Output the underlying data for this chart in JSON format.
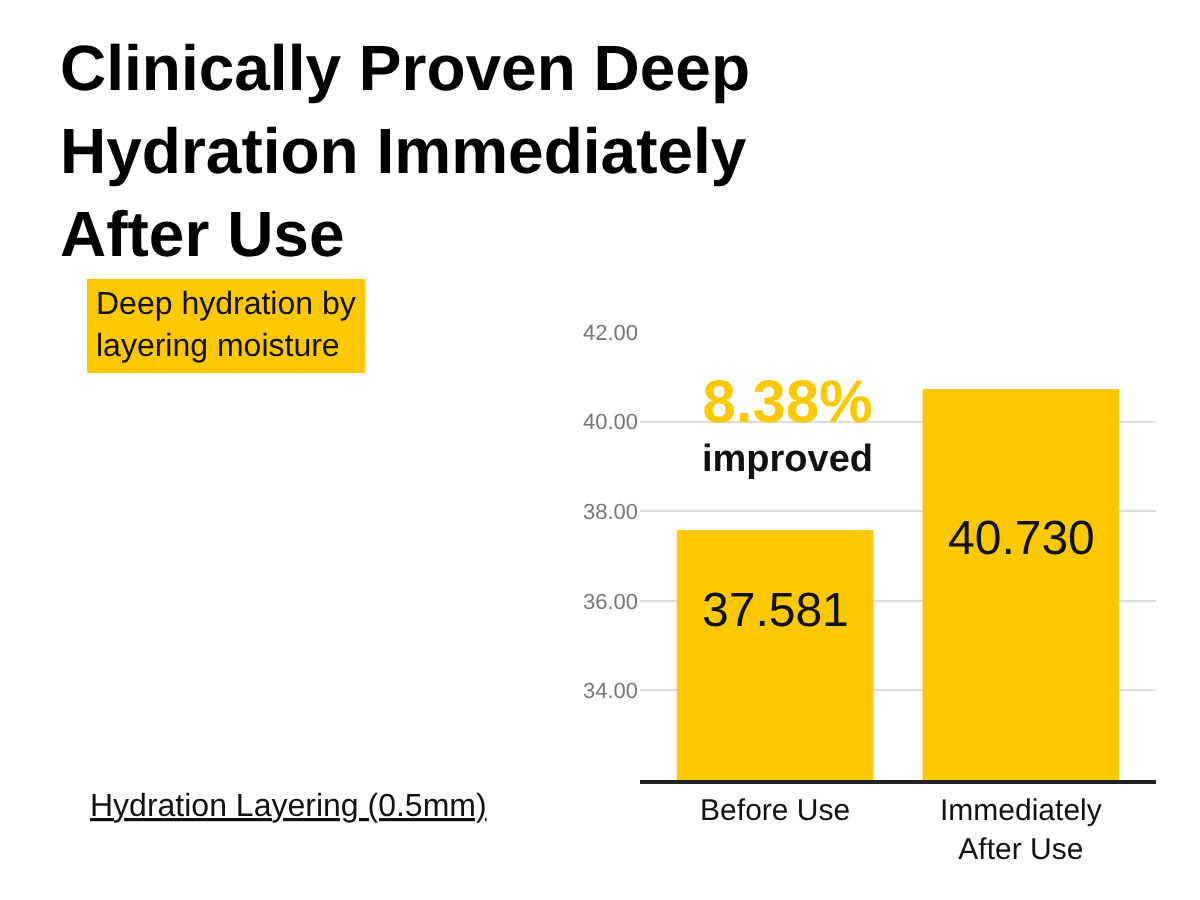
{
  "chart_data": {
    "type": "bar",
    "title": "Clinically Proven Deep Hydration Immediately After Use",
    "categories": [
      "Before Use",
      "Immediately After Use"
    ],
    "values": [
      37.581,
      40.73
    ],
    "value_labels": [
      "37.581",
      "40.730"
    ],
    "color": "#fcc800",
    "ylim": [
      32,
      42
    ],
    "yticks": [
      {
        "value": 34,
        "label": "34.00"
      },
      {
        "value": 36,
        "label": "36.00"
      },
      {
        "value": 38,
        "label": "38.00"
      },
      {
        "value": 40,
        "label": "40.00"
      },
      {
        "value": 42,
        "label": "42.00"
      }
    ],
    "grid": "y",
    "annotations": [
      "8.38% improved",
      "Deep hydration by layering moisture",
      "Hydration Layering (0.5mm)"
    ]
  }
}
